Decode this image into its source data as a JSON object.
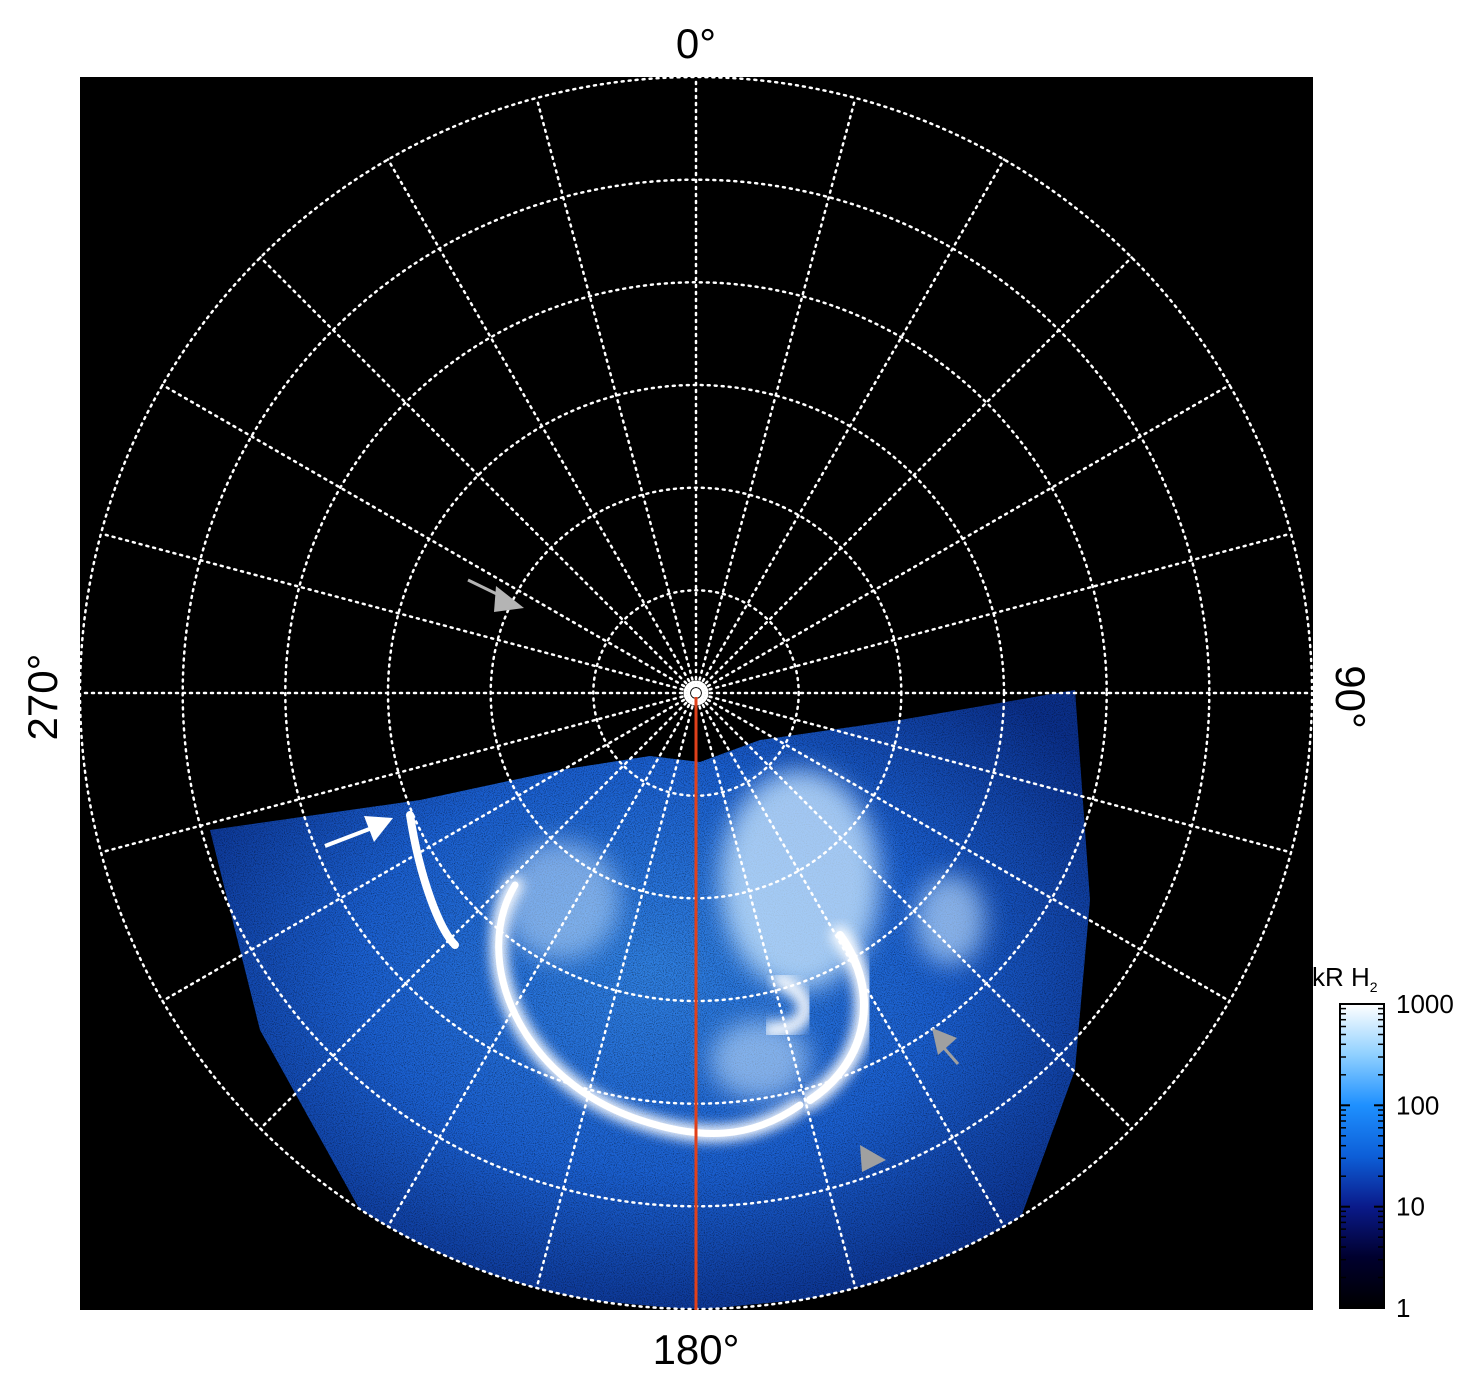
{
  "chart_data": {
    "type": "heatmap",
    "title": "",
    "projection": "polar",
    "longitude_labels": {
      "top": "0°",
      "right": "90°",
      "bottom": "180°",
      "left": "270°"
    },
    "grid": {
      "visible": true,
      "style": "dotted",
      "color": "#ffffff",
      "meridian_step_deg": 15,
      "circle_count": 6
    },
    "reference_meridian_deg": 180,
    "reference_meridian_color": "#e0401a",
    "colorbar": {
      "label": "kR H",
      "label_subscript": "2",
      "scale": "log",
      "range": [
        1,
        1000
      ],
      "ticks": [
        "1000",
        "100",
        "10",
        "1"
      ],
      "placement": "right",
      "colors": [
        "#000000",
        "#00002e",
        "#0a1a8a",
        "#0d5fd8",
        "#1e90ff",
        "#8fd0ff",
        "#ffffff"
      ]
    },
    "annotations": [
      {
        "type": "arrow",
        "color": "white",
        "lon_deg": 240,
        "colat_ring": 4.3
      },
      {
        "type": "arrow",
        "color": "gray",
        "lon_deg": 290,
        "colat_ring": 2.0
      },
      {
        "type": "arrowhead",
        "color": "gray",
        "lon_deg": 140,
        "colat_ring": 3.8
      },
      {
        "type": "arrowhead",
        "color": "gray",
        "lon_deg": 160,
        "colat_ring": 4.6
      }
    ],
    "background_color": "#000000"
  }
}
